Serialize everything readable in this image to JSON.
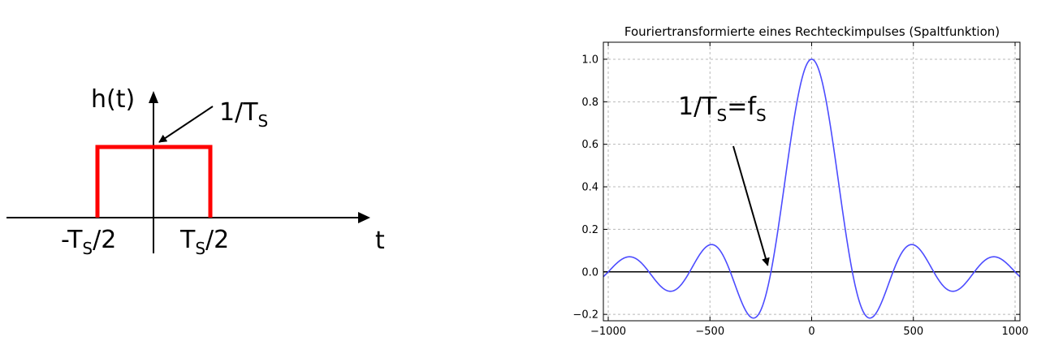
{
  "left_diagram": {
    "y_label": "h(t)",
    "x_label": "t",
    "height_label_main": "1/T",
    "height_label_sub": "S",
    "left_edge_label_pre": "-T",
    "left_edge_label_sub": "S",
    "left_edge_label_post": "/2",
    "right_edge_label_pre": "T",
    "right_edge_label_sub": "S",
    "right_edge_label_post": "/2",
    "pulse_color": "#ff0000"
  },
  "chart_data": {
    "type": "line",
    "title": "Fouriertransformierte eines Rechteckimpulses (Spaltfunktion)",
    "xlim": [
      -1024,
      1024
    ],
    "ylim": [
      -0.23,
      1.08
    ],
    "x_ticks": [
      -1000,
      -500,
      0,
      500,
      1000
    ],
    "x_tick_labels": [
      "−1000",
      "−500",
      "0",
      "500",
      "1000"
    ],
    "y_ticks": [
      -0.2,
      0.0,
      0.2,
      0.4,
      0.6,
      0.8,
      1.0
    ],
    "y_tick_labels": [
      "−0.2",
      "0.0",
      "0.2",
      "0.4",
      "0.6",
      "0.8",
      "1.0"
    ],
    "grid": true,
    "series": [
      {
        "color": "#4c4cff",
        "x": [
          -1024,
          -1000,
          -900,
          -800,
          -700,
          -600,
          -500,
          -400,
          -300,
          -280,
          -200,
          -100,
          0,
          100,
          200,
          280,
          300,
          400,
          500,
          600,
          700,
          800,
          900,
          1000,
          1024
        ],
        "y": [
          -0.02,
          0.0,
          0.07,
          0.0,
          -0.09,
          0.0,
          0.13,
          0.0,
          -0.21,
          -0.21,
          0.0,
          0.64,
          1.0,
          0.64,
          0.0,
          -0.21,
          -0.21,
          0.0,
          0.13,
          0.0,
          -0.09,
          0.0,
          0.07,
          0.0,
          -0.02
        ],
        "zero_spacing": 200
      }
    ],
    "baseline": {
      "y": 0.0,
      "color": "#000000"
    },
    "annotation": {
      "text_main": "1/T",
      "text_sub1": "S",
      "text_mid": "=f",
      "text_sub2": "S",
      "arrow_target_x": -200,
      "arrow_target_y": 0.0
    }
  }
}
